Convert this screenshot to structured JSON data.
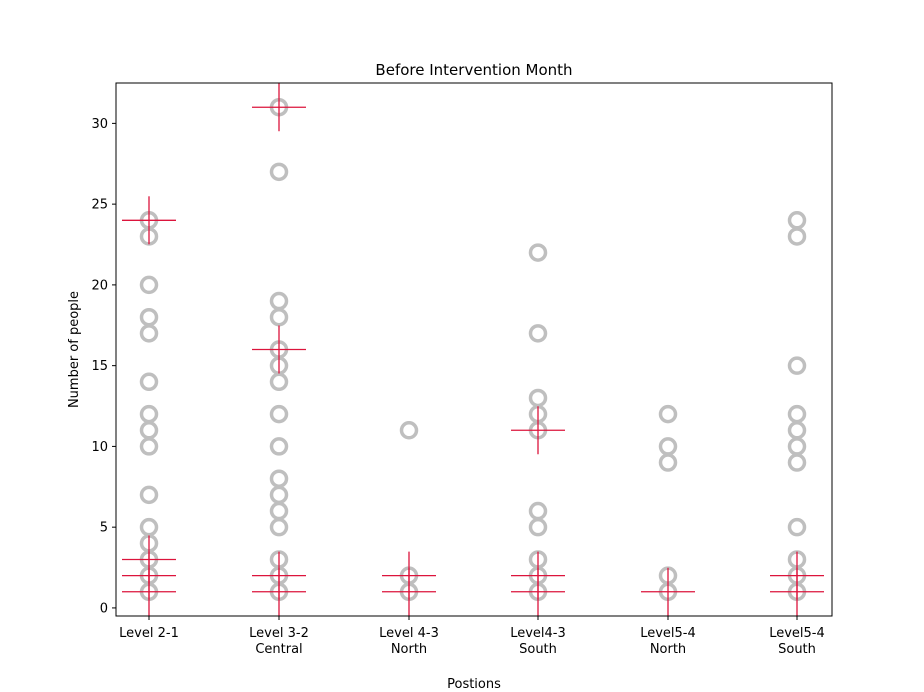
{
  "chart_data": {
    "type": "scatter",
    "title": "Before Intervention Month",
    "xlabel": "Postions",
    "ylabel": "Number of people",
    "ylim": [
      -0.5,
      32.5
    ],
    "yticks": [
      0,
      5,
      10,
      15,
      20,
      25,
      30
    ],
    "grid": false,
    "categories": [
      {
        "line1": "Level 2-1",
        "line2": ""
      },
      {
        "line1": "Level 3-2",
        "line2": "Central"
      },
      {
        "line1": "Level 4-3",
        "line2": "North"
      },
      {
        "line1": "Level4-3",
        "line2": "South"
      },
      {
        "line1": "Level5-4",
        "line2": "North"
      },
      {
        "line1": "Level5-4",
        "line2": "South"
      }
    ],
    "points": [
      [
        1,
        2,
        3,
        4,
        5,
        7,
        10,
        11,
        12,
        14,
        17,
        18,
        20,
        23,
        24
      ],
      [
        1,
        2,
        3,
        5,
        6,
        7,
        8,
        10,
        12,
        14,
        15,
        16,
        18,
        19,
        27,
        31
      ],
      [
        1,
        2,
        11
      ],
      [
        1,
        2,
        3,
        5,
        6,
        11,
        12,
        13,
        17,
        22
      ],
      [
        1,
        2,
        9,
        10,
        12
      ],
      [
        1,
        2,
        3,
        5,
        9,
        10,
        11,
        12,
        15,
        23,
        24
      ]
    ],
    "crosses": [
      [
        1,
        2,
        3,
        24
      ],
      [
        1,
        2,
        16,
        31
      ],
      [
        1,
        2
      ],
      [
        1,
        2,
        11
      ],
      [
        1
      ],
      [
        1,
        2
      ]
    ],
    "colors": {
      "marker_edge": "#bfbfbf",
      "cross": "#dc143c"
    }
  }
}
